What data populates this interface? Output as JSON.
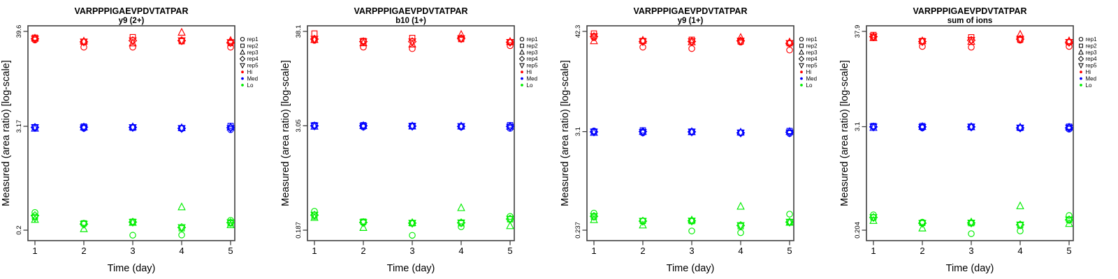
{
  "colors": {
    "hi": "#ff0000",
    "med": "#0000ff",
    "lo": "#00ee00",
    "axis": "#404040",
    "text": "#000000"
  },
  "replicate_order": [
    "rep1",
    "rep2",
    "rep3",
    "rep4",
    "rep5"
  ],
  "replicate_symbols": [
    "circle",
    "square",
    "triangle-up",
    "diamond",
    "triangle-down"
  ],
  "legend": {
    "items": [
      {
        "label": "rep1",
        "symbol": "circle",
        "color": "#000000"
      },
      {
        "label": "rep2",
        "symbol": "square",
        "color": "#000000"
      },
      {
        "label": "rep3",
        "symbol": "triangle-up",
        "color": "#000000"
      },
      {
        "label": "rep4",
        "symbol": "diamond",
        "color": "#000000"
      },
      {
        "label": "rep5",
        "symbol": "triangle-down",
        "color": "#000000"
      },
      {
        "label": "Hi",
        "symbol": "dot",
        "color": "#ff0000"
      },
      {
        "label": "Med",
        "symbol": "dot",
        "color": "#0000ff"
      },
      {
        "label": "Lo",
        "symbol": "dot",
        "color": "#00ee00"
      }
    ]
  },
  "chart_data": [
    {
      "type": "scatter",
      "title": "VARPPPIGAEVPDVTATPAR",
      "subtitle": "y9 (2+)",
      "xlabel": "Time (day)",
      "ylabel": "Measured (area ratio) [log-scale]",
      "yscale": "log",
      "x": [
        1,
        2,
        3,
        4,
        5
      ],
      "yticks": [
        {
          "value": 0.2,
          "label": "0.2"
        },
        {
          "value": 3.17,
          "label": "3.17"
        },
        {
          "value": 39.6,
          "label": "39.6"
        }
      ],
      "values_layout": "values_by_day rows = days 1-5, cols = replicates rep1-rep5",
      "series": [
        {
          "name": "Hi",
          "color": "#ff0000",
          "values_by_day": [
            [
              31.5,
              33.5,
              33.0,
              32.5,
              32.5
            ],
            [
              26.0,
              30.0,
              30.5,
              30.0,
              30.0
            ],
            [
              26.0,
              34.0,
              29.0,
              31.0,
              31.0
            ],
            [
              30.5,
              30.5,
              38.5,
              31.0,
              31.0
            ],
            [
              26.0,
              29.0,
              31.0,
              29.5,
              29.5
            ]
          ]
        },
        {
          "name": "Med",
          "color": "#0000ff",
          "values_by_day": [
            [
              3.05,
              3.1,
              3.0,
              3.08,
              3.08
            ],
            [
              3.0,
              3.15,
              3.1,
              3.1,
              3.05
            ],
            [
              3.1,
              3.05,
              3.12,
              3.08,
              3.08
            ],
            [
              2.98,
              3.02,
              3.05,
              3.0,
              3.0
            ],
            [
              2.9,
              3.2,
              3.1,
              3.05,
              3.0
            ]
          ]
        },
        {
          "name": "Lo",
          "color": "#00ee00",
          "values_by_day": [
            [
              0.32,
              0.285,
              0.265,
              0.295,
              0.275
            ],
            [
              0.24,
              0.24,
              0.207,
              0.235,
              0.235
            ],
            [
              0.175,
              0.25,
              0.245,
              0.248,
              0.248
            ],
            [
              0.176,
              0.21,
              0.37,
              0.215,
              0.215
            ],
            [
              0.26,
              0.24,
              0.23,
              0.245,
              0.245
            ]
          ]
        }
      ]
    },
    {
      "type": "scatter",
      "title": "VARPPPIGAEVPDVTATPAR",
      "subtitle": "b10 (1+)",
      "xlabel": "Time (day)",
      "ylabel": "Measured (area ratio) [log-scale]",
      "yscale": "log",
      "x": [
        1,
        2,
        3,
        4,
        5
      ],
      "yticks": [
        {
          "value": 0.187,
          "label": "0.187"
        },
        {
          "value": 3.05,
          "label": "3.05"
        },
        {
          "value": 38.1,
          "label": "38.1"
        }
      ],
      "values_layout": "values_by_day rows = days 1-5, cols = replicates rep1-rep5",
      "series": [
        {
          "name": "Hi",
          "color": "#ff0000",
          "values_by_day": [
            [
              30.0,
              36.0,
              30.5,
              31.0,
              31.0
            ],
            [
              25.0,
              29.5,
              28.0,
              29.0,
              29.0
            ],
            [
              24.0,
              32.0,
              27.0,
              29.0,
              29.0
            ],
            [
              31.0,
              31.0,
              35.0,
              31.5,
              31.5
            ],
            [
              26.0,
              28.5,
              29.0,
              28.5,
              28.5
            ]
          ]
        },
        {
          "name": "Med",
          "color": "#0000ff",
          "values_by_day": [
            [
              3.05,
              3.1,
              3.0,
              3.05,
              3.05
            ],
            [
              2.95,
              3.1,
              3.05,
              3.05,
              3.0
            ],
            [
              3.0,
              3.05,
              3.02,
              3.02,
              3.02
            ],
            [
              2.95,
              3.0,
              3.02,
              3.0,
              3.0
            ],
            [
              2.85,
              3.1,
              3.0,
              3.0,
              2.95
            ]
          ]
        },
        {
          "name": "Lo",
          "color": "#00ee00",
          "values_by_day": [
            [
              0.31,
              0.27,
              0.262,
              0.28,
              0.28
            ],
            [
              0.228,
              0.235,
              0.2,
              0.23,
              0.23
            ],
            [
              0.163,
              0.225,
              0.228,
              0.226,
              0.226
            ],
            [
              0.205,
              0.225,
              0.34,
              0.228,
              0.228
            ],
            [
              0.27,
              0.25,
              0.21,
              0.252,
              0.252
            ]
          ]
        }
      ]
    },
    {
      "type": "scatter",
      "title": "VARPPPIGAEVPDVTATPAR",
      "subtitle": "y9 (1+)",
      "xlabel": "Time (day)",
      "ylabel": "Measured (area ratio) [log-scale]",
      "yscale": "log",
      "x": [
        1,
        2,
        3,
        4,
        5
      ],
      "yticks": [
        {
          "value": 0.237,
          "label": "0.237"
        },
        {
          "value": 3.1,
          "label": "3.1"
        },
        {
          "value": 42.3,
          "label": "42.3"
        }
      ],
      "values_layout": "values_by_day rows = days 1-5, cols = replicates rep1-rep5",
      "series": [
        {
          "name": "Hi",
          "color": "#ff0000",
          "values_by_day": [
            [
              36.0,
              40.0,
              33.0,
              37.0,
              37.0
            ],
            [
              28.0,
              33.0,
              33.5,
              32.5,
              32.5
            ],
            [
              27.0,
              34.0,
              32.0,
              32.5,
              32.5
            ],
            [
              32.0,
              32.5,
              36.0,
              33.0,
              33.0
            ],
            [
              26.0,
              31.0,
              32.0,
              31.0,
              31.0
            ]
          ]
        },
        {
          "name": "Med",
          "color": "#0000ff",
          "values_by_day": [
            [
              3.15,
              3.1,
              3.02,
              3.08,
              3.08
            ],
            [
              3.0,
              3.2,
              3.1,
              3.1,
              3.05
            ],
            [
              3.05,
              3.1,
              3.08,
              3.08,
              3.08
            ],
            [
              3.0,
              3.02,
              3.05,
              3.0,
              3.0
            ],
            [
              2.95,
              3.15,
              3.1,
              3.05,
              3.0
            ]
          ]
        },
        {
          "name": "Lo",
          "color": "#00ee00",
          "values_by_day": [
            [
              0.37,
              0.335,
              0.31,
              0.34,
              0.34
            ],
            [
              0.3,
              0.302,
              0.27,
              0.3,
              0.3
            ],
            [
              0.232,
              0.3,
              0.308,
              0.302,
              0.302
            ],
            [
              0.222,
              0.262,
              0.44,
              0.268,
              0.268
            ],
            [
              0.36,
              0.292,
              0.29,
              0.293,
              0.293
            ]
          ]
        }
      ]
    },
    {
      "type": "scatter",
      "title": "VARPPPIGAEVPDVTATPAR",
      "subtitle": "sum of ions",
      "xlabel": "Time (day)",
      "ylabel": "Measured (area ratio) [log-scale]",
      "yscale": "log",
      "x": [
        1,
        2,
        3,
        4,
        5
      ],
      "yticks": [
        {
          "value": 0.204,
          "label": "0.204"
        },
        {
          "value": 3.1,
          "label": "3.1"
        },
        {
          "value": 37.9,
          "label": "37.9"
        }
      ],
      "values_layout": "values_by_day rows = days 1-5, cols = replicates rep1-rep5",
      "series": [
        {
          "name": "Hi",
          "color": "#ff0000",
          "values_by_day": [
            [
              32.0,
              34.5,
              32.0,
              33.0,
              33.0
            ],
            [
              25.5,
              29.5,
              29.5,
              29.0,
              29.0
            ],
            [
              25.0,
              32.5,
              29.0,
              30.0,
              30.0
            ],
            [
              30.0,
              30.5,
              35.0,
              31.0,
              31.0
            ],
            [
              25.5,
              28.5,
              29.5,
              28.5,
              28.5
            ]
          ]
        },
        {
          "name": "Med",
          "color": "#0000ff",
          "values_by_day": [
            [
              3.1,
              3.15,
              3.02,
              3.08,
              3.08
            ],
            [
              3.0,
              3.15,
              3.1,
              3.08,
              3.05
            ],
            [
              3.05,
              3.1,
              3.08,
              3.08,
              3.08
            ],
            [
              2.98,
              3.0,
              3.05,
              3.0,
              3.0
            ],
            [
              2.9,
              3.1,
              3.05,
              3.0,
              3.0
            ]
          ]
        },
        {
          "name": "Lo",
          "color": "#00ee00",
          "values_by_day": [
            [
              0.305,
              0.285,
              0.262,
              0.285,
              0.285
            ],
            [
              0.252,
              0.247,
              0.215,
              0.245,
              0.245
            ],
            [
              0.186,
              0.245,
              0.252,
              0.247,
              0.247
            ],
            [
              0.2,
              0.232,
              0.385,
              0.235,
              0.235
            ],
            [
              0.3,
              0.268,
              0.242,
              0.268,
              0.268
            ]
          ]
        }
      ]
    }
  ]
}
